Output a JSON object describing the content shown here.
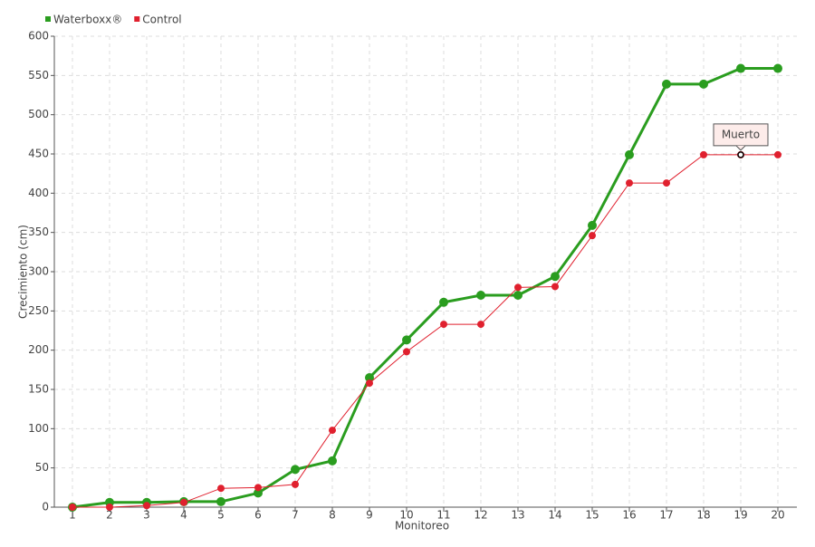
{
  "chart_data": {
    "type": "line",
    "x_label": "Monitoreo",
    "y_label": "Crecimiento (cm)",
    "categories": [
      "1",
      "2",
      "3",
      "4",
      "5",
      "6",
      "7",
      "8",
      "9",
      "10",
      "11",
      "12",
      "13",
      "14",
      "15",
      "16",
      "17",
      "18",
      "19",
      "20"
    ],
    "series": [
      {
        "name": "Waterboxx®",
        "color": "#2a9d1f",
        "values": [
          0,
          6,
          6,
          7,
          7,
          18,
          48,
          59,
          165,
          213,
          261,
          270,
          270,
          294,
          359,
          449,
          539,
          539,
          559,
          559
        ]
      },
      {
        "name": "Control",
        "color": "#e0202e",
        "values": [
          0,
          0,
          2,
          6,
          24,
          25,
          29,
          98,
          158,
          198,
          233,
          233,
          280,
          281,
          346,
          413,
          413,
          449,
          449,
          449
        ]
      }
    ],
    "annotations": [
      {
        "text": "Muerto",
        "series": "Control",
        "category": "19"
      }
    ],
    "ylim": [
      0,
      600
    ],
    "yticks": [
      0,
      50,
      100,
      150,
      200,
      250,
      300,
      350,
      400,
      450,
      500,
      550,
      600
    ],
    "grid": true,
    "legend": "top-left"
  }
}
